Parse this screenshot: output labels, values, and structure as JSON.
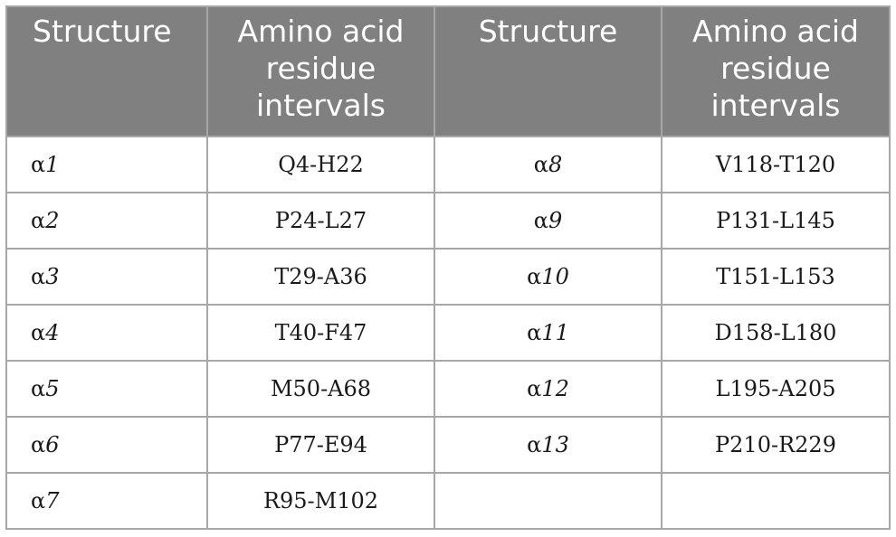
{
  "headers": [
    "Structure",
    "Amino acid residue intervals",
    "Structure",
    "Amino acid residue intervals"
  ],
  "rows": [
    {
      "s1_prefix": "α",
      "s1_num": "1",
      "r1": "Q4-H22",
      "s2_prefix": "α",
      "s2_num": "8",
      "r2": "V118-T120"
    },
    {
      "s1_prefix": "α",
      "s1_num": "2",
      "r1": "P24-L27",
      "s2_prefix": "α",
      "s2_num": "9",
      "r2": "P131-L145"
    },
    {
      "s1_prefix": "α",
      "s1_num": "3",
      "r1": "T29-A36",
      "s2_prefix": "α",
      "s2_num": "10",
      "r2": "T151-L153"
    },
    {
      "s1_prefix": "α",
      "s1_num": "4",
      "r1": "T40-F47",
      "s2_prefix": "α",
      "s2_num": "11",
      "r2": "D158-L180"
    },
    {
      "s1_prefix": "α",
      "s1_num": "5",
      "r1": "M50-A68",
      "s2_prefix": "α",
      "s2_num": "12",
      "r2": "L195-A205"
    },
    {
      "s1_prefix": "α",
      "s1_num": "6",
      "r1": "P77-E94",
      "s2_prefix": "α",
      "s2_num": "13",
      "r2": "P210-R229"
    },
    {
      "s1_prefix": "α",
      "s1_num": "7",
      "r1": "R95-M102",
      "s2_prefix": "",
      "s2_num": "",
      "r2": ""
    }
  ]
}
